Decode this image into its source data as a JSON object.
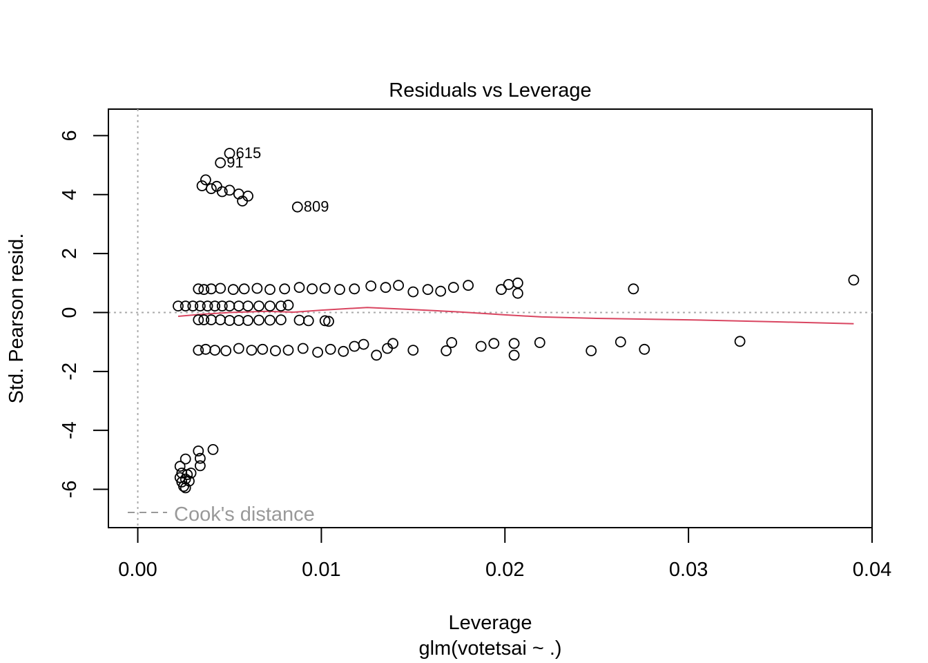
{
  "chart_data": {
    "type": "scatter",
    "title": "Residuals vs Leverage",
    "xlabel": "Leverage",
    "xsublabel": "glm(votetsai ~ .)",
    "ylabel": "Std. Pearson resid.",
    "xlim": [
      -0.0016,
      0.04
    ],
    "ylim": [
      -7.3,
      6.9
    ],
    "xticks": [
      "0.00",
      "0.01",
      "0.02",
      "0.03",
      "0.04"
    ],
    "xtick_values": [
      0.0,
      0.01,
      0.02,
      0.03,
      0.04
    ],
    "yticks": [
      "-6",
      "-4",
      "-2",
      "0",
      "2",
      "4",
      "6"
    ],
    "ytick_values": [
      -6,
      -4,
      -2,
      0,
      2,
      4,
      6
    ],
    "legend": {
      "label": "Cook's distance",
      "position": "bottom-left",
      "style": "dashed"
    },
    "reference_lines": {
      "vertical_x": 0,
      "horizontal_y": 0,
      "style": "dotted",
      "color": "#aaaaaa"
    },
    "colors": {
      "points": "#000000",
      "smooth": "#d94560",
      "axis": "#000000",
      "legend_text": "#999999"
    },
    "labeled_points": [
      {
        "label": "615",
        "x": 0.005,
        "y": 5.4
      },
      {
        "label": "91",
        "x": 0.0045,
        "y": 5.08
      },
      {
        "label": "809",
        "x": 0.0087,
        "y": 3.58
      }
    ],
    "smooth_line": [
      [
        0.0022,
        -0.13
      ],
      [
        0.0035,
        -0.06
      ],
      [
        0.005,
        0.0
      ],
      [
        0.007,
        0.04
      ],
      [
        0.0085,
        0.01
      ],
      [
        0.01,
        0.08
      ],
      [
        0.0125,
        0.17
      ],
      [
        0.015,
        0.1
      ],
      [
        0.0175,
        0.02
      ],
      [
        0.02,
        -0.08
      ],
      [
        0.022,
        -0.15
      ],
      [
        0.025,
        -0.2
      ],
      [
        0.03,
        -0.25
      ],
      [
        0.035,
        -0.32
      ],
      [
        0.039,
        -0.38
      ]
    ],
    "highlighted_points": [
      [
        0.005,
        4.15
      ],
      [
        0.0055,
        4.02
      ],
      [
        0.006,
        3.95
      ],
      [
        0.0057,
        3.78
      ],
      [
        0.0035,
        4.3
      ],
      [
        0.0037,
        4.5
      ],
      [
        0.004,
        4.2
      ],
      [
        0.0043,
        4.28
      ],
      [
        0.0046,
        4.1
      ]
    ],
    "band_high": [
      [
        0.0033,
        0.8
      ],
      [
        0.0036,
        0.78
      ],
      [
        0.004,
        0.8
      ],
      [
        0.0045,
        0.82
      ],
      [
        0.0052,
        0.78
      ],
      [
        0.0058,
        0.8
      ],
      [
        0.0065,
        0.82
      ],
      [
        0.0072,
        0.78
      ],
      [
        0.008,
        0.8
      ],
      [
        0.0088,
        0.85
      ],
      [
        0.0095,
        0.8
      ],
      [
        0.0102,
        0.82
      ],
      [
        0.011,
        0.78
      ],
      [
        0.0118,
        0.8
      ],
      [
        0.0127,
        0.9
      ],
      [
        0.0135,
        0.85
      ],
      [
        0.0142,
        0.92
      ],
      [
        0.015,
        0.7
      ],
      [
        0.0158,
        0.78
      ],
      [
        0.0165,
        0.72
      ],
      [
        0.0172,
        0.85
      ],
      [
        0.018,
        0.92
      ],
      [
        0.0198,
        0.78
      ],
      [
        0.0202,
        0.95
      ],
      [
        0.0207,
        1.0
      ],
      [
        0.0207,
        0.65
      ],
      [
        0.027,
        0.8
      ],
      [
        0.039,
        1.1
      ]
    ],
    "band_mid": [
      [
        0.0022,
        0.22
      ],
      [
        0.0026,
        0.22
      ],
      [
        0.003,
        0.22
      ],
      [
        0.0034,
        0.22
      ],
      [
        0.0038,
        0.22
      ],
      [
        0.0042,
        0.22
      ],
      [
        0.0046,
        0.22
      ],
      [
        0.005,
        0.22
      ],
      [
        0.0055,
        0.22
      ],
      [
        0.006,
        0.22
      ],
      [
        0.0066,
        0.22
      ],
      [
        0.0072,
        0.22
      ],
      [
        0.0078,
        0.22
      ],
      [
        0.0082,
        0.25
      ]
    ],
    "band_low": [
      [
        0.0033,
        -0.25
      ],
      [
        0.0036,
        -0.25
      ],
      [
        0.004,
        -0.25
      ],
      [
        0.0045,
        -0.25
      ],
      [
        0.005,
        -0.27
      ],
      [
        0.0055,
        -0.27
      ],
      [
        0.006,
        -0.27
      ],
      [
        0.0066,
        -0.26
      ],
      [
        0.0072,
        -0.26
      ],
      [
        0.0078,
        -0.25
      ],
      [
        0.0088,
        -0.26
      ],
      [
        0.0093,
        -0.28
      ],
      [
        0.0102,
        -0.28
      ],
      [
        0.0104,
        -0.3
      ]
    ],
    "band_bottom": [
      [
        0.0033,
        -1.28
      ],
      [
        0.0037,
        -1.25
      ],
      [
        0.0042,
        -1.28
      ],
      [
        0.0048,
        -1.3
      ],
      [
        0.0055,
        -1.22
      ],
      [
        0.0062,
        -1.28
      ],
      [
        0.0068,
        -1.25
      ],
      [
        0.0075,
        -1.3
      ],
      [
        0.0082,
        -1.28
      ],
      [
        0.009,
        -1.22
      ],
      [
        0.0098,
        -1.35
      ],
      [
        0.0105,
        -1.25
      ],
      [
        0.0112,
        -1.32
      ],
      [
        0.0118,
        -1.15
      ],
      [
        0.0123,
        -1.08
      ],
      [
        0.013,
        -1.45
      ],
      [
        0.0136,
        -1.22
      ],
      [
        0.0139,
        -1.05
      ],
      [
        0.015,
        -1.28
      ],
      [
        0.0168,
        -1.3
      ],
      [
        0.0171,
        -1.02
      ],
      [
        0.0187,
        -1.15
      ],
      [
        0.0194,
        -1.05
      ],
      [
        0.0205,
        -1.05
      ],
      [
        0.0205,
        -1.45
      ],
      [
        0.0219,
        -1.02
      ],
      [
        0.0247,
        -1.3
      ],
      [
        0.0263,
        -1.0
      ],
      [
        0.0276,
        -1.25
      ],
      [
        0.0328,
        -0.98
      ]
    ],
    "band_outliers": [
      [
        0.0023,
        -5.22
      ],
      [
        0.0023,
        -5.6
      ],
      [
        0.0024,
        -5.75
      ],
      [
        0.0025,
        -5.9
      ],
      [
        0.0026,
        -5.95
      ],
      [
        0.0026,
        -5.65
      ],
      [
        0.0027,
        -5.5
      ],
      [
        0.0028,
        -5.72
      ],
      [
        0.0029,
        -5.45
      ],
      [
        0.0026,
        -4.97
      ],
      [
        0.0033,
        -4.7
      ],
      [
        0.0034,
        -5.2
      ],
      [
        0.0034,
        -4.95
      ],
      [
        0.0041,
        -4.65
      ],
      [
        0.0024,
        -5.45
      ]
    ]
  }
}
